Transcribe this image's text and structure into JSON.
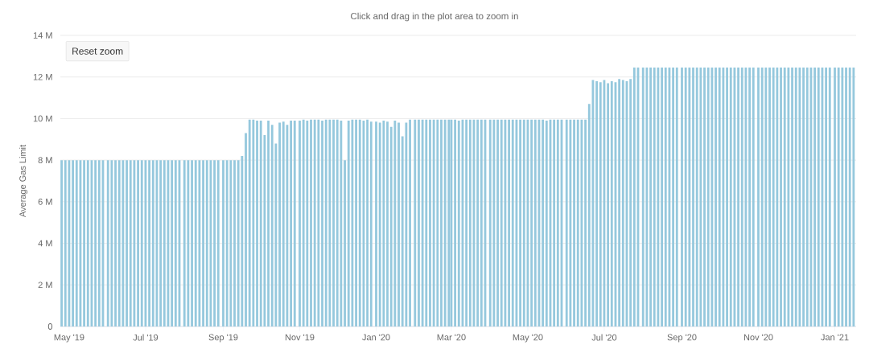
{
  "chart_data": {
    "type": "bar",
    "subtitle": "Click and drag in the plot area to zoom in",
    "ylabel": "Average Gas Limit",
    "annotations": [
      "Reset zoom"
    ],
    "color": "#95c8dd",
    "grid": "y",
    "xlim": [
      "2019-04-24",
      "2021-01-18"
    ],
    "ylim": [
      0,
      14
    ],
    "xticks": [
      {
        "value": "2019-05-01",
        "label": "May '19"
      },
      {
        "value": "2019-07-01",
        "label": "Jul '19"
      },
      {
        "value": "2019-09-01",
        "label": "Sep '19"
      },
      {
        "value": "2019-11-01",
        "label": "Nov '19"
      },
      {
        "value": "2020-01-01",
        "label": "Jan '20"
      },
      {
        "value": "2020-03-01",
        "label": "Mar '20"
      },
      {
        "value": "2020-05-01",
        "label": "May '20"
      },
      {
        "value": "2020-07-01",
        "label": "Jul '20"
      },
      {
        "value": "2020-09-01",
        "label": "Sep '20"
      },
      {
        "value": "2020-11-01",
        "label": "Nov '20"
      },
      {
        "value": "2021-01-01",
        "label": "Jan '21"
      }
    ],
    "yticks": [
      0,
      {
        "value": 2,
        "label": "2 M"
      },
      {
        "value": 4,
        "label": "4 M"
      },
      {
        "value": 6,
        "label": "6 M"
      },
      {
        "value": 8,
        "label": "8 M"
      },
      {
        "value": 10,
        "label": "10 M"
      },
      {
        "value": 12,
        "label": "12 M"
      },
      {
        "value": 14,
        "label": "14 M"
      }
    ],
    "x": [
      "2019-04-25",
      "2019-04-28",
      "2019-05-01",
      "2019-05-04",
      "2019-05-07",
      "2019-05-10",
      "2019-05-13",
      "2019-05-16",
      "2019-05-19",
      "2019-05-22",
      "2019-05-25",
      "2019-05-28",
      "2019-06-01",
      "2019-06-04",
      "2019-06-07",
      "2019-06-10",
      "2019-06-13",
      "2019-06-16",
      "2019-06-19",
      "2019-06-22",
      "2019-06-25",
      "2019-06-28",
      "2019-07-01",
      "2019-07-04",
      "2019-07-07",
      "2019-07-10",
      "2019-07-13",
      "2019-07-16",
      "2019-07-19",
      "2019-07-22",
      "2019-07-25",
      "2019-07-28",
      "2019-08-01",
      "2019-08-04",
      "2019-08-07",
      "2019-08-10",
      "2019-08-13",
      "2019-08-16",
      "2019-08-19",
      "2019-08-22",
      "2019-08-25",
      "2019-08-28",
      "2019-09-01",
      "2019-09-04",
      "2019-09-07",
      "2019-09-10",
      "2019-09-13",
      "2019-09-16",
      "2019-09-19",
      "2019-09-22",
      "2019-09-25",
      "2019-09-28",
      "2019-10-01",
      "2019-10-04",
      "2019-10-07",
      "2019-10-10",
      "2019-10-13",
      "2019-10-16",
      "2019-10-19",
      "2019-10-22",
      "2019-10-25",
      "2019-10-28",
      "2019-11-01",
      "2019-11-04",
      "2019-11-07",
      "2019-11-10",
      "2019-11-13",
      "2019-11-16",
      "2019-11-19",
      "2019-11-22",
      "2019-11-25",
      "2019-11-28",
      "2019-12-01",
      "2019-12-04",
      "2019-12-07",
      "2019-12-10",
      "2019-12-13",
      "2019-12-16",
      "2019-12-19",
      "2019-12-22",
      "2019-12-25",
      "2019-12-28",
      "2020-01-01",
      "2020-01-04",
      "2020-01-07",
      "2020-01-10",
      "2020-01-13",
      "2020-01-16",
      "2020-01-19",
      "2020-01-22",
      "2020-01-25",
      "2020-01-28",
      "2020-02-01",
      "2020-02-04",
      "2020-02-07",
      "2020-02-10",
      "2020-02-13",
      "2020-02-16",
      "2020-02-19",
      "2020-02-22",
      "2020-02-25",
      "2020-02-28",
      "2020-03-01",
      "2020-03-04",
      "2020-03-07",
      "2020-03-10",
      "2020-03-13",
      "2020-03-16",
      "2020-03-19",
      "2020-03-22",
      "2020-03-25",
      "2020-03-28",
      "2020-04-01",
      "2020-04-04",
      "2020-04-07",
      "2020-04-10",
      "2020-04-13",
      "2020-04-16",
      "2020-04-19",
      "2020-04-22",
      "2020-04-25",
      "2020-04-28",
      "2020-05-01",
      "2020-05-04",
      "2020-05-07",
      "2020-05-10",
      "2020-05-13",
      "2020-05-16",
      "2020-05-19",
      "2020-05-22",
      "2020-05-25",
      "2020-05-28",
      "2020-06-01",
      "2020-06-04",
      "2020-06-07",
      "2020-06-10",
      "2020-06-13",
      "2020-06-16",
      "2020-06-19",
      "2020-06-22",
      "2020-06-25",
      "2020-06-28",
      "2020-07-01",
      "2020-07-04",
      "2020-07-07",
      "2020-07-10",
      "2020-07-13",
      "2020-07-16",
      "2020-07-19",
      "2020-07-22",
      "2020-07-25",
      "2020-07-28",
      "2020-08-01",
      "2020-08-04",
      "2020-08-07",
      "2020-08-10",
      "2020-08-13",
      "2020-08-16",
      "2020-08-19",
      "2020-08-22",
      "2020-08-25",
      "2020-08-28",
      "2020-09-01",
      "2020-09-04",
      "2020-09-07",
      "2020-09-10",
      "2020-09-13",
      "2020-09-16",
      "2020-09-19",
      "2020-09-22",
      "2020-09-25",
      "2020-09-28",
      "2020-10-01",
      "2020-10-04",
      "2020-10-07",
      "2020-10-10",
      "2020-10-13",
      "2020-10-16",
      "2020-10-19",
      "2020-10-22",
      "2020-10-25",
      "2020-10-28",
      "2020-11-01",
      "2020-11-04",
      "2020-11-07",
      "2020-11-10",
      "2020-11-13",
      "2020-11-16",
      "2020-11-19",
      "2020-11-22",
      "2020-11-25",
      "2020-11-28",
      "2020-12-01",
      "2020-12-04",
      "2020-12-07",
      "2020-12-10",
      "2020-12-13",
      "2020-12-16",
      "2020-12-19",
      "2020-12-22",
      "2020-12-25",
      "2020-12-28",
      "2021-01-01",
      "2021-01-04",
      "2021-01-07",
      "2021-01-10",
      "2021-01-13",
      "2021-01-16"
    ],
    "values": [
      8,
      8,
      8,
      8,
      8,
      8,
      8,
      8,
      8,
      8,
      8,
      8,
      8,
      8,
      8,
      8,
      8,
      8,
      8,
      8,
      8,
      8,
      8,
      8,
      8,
      8,
      8,
      8,
      8,
      8,
      8,
      8,
      8,
      8,
      8,
      8,
      8,
      8,
      8,
      8,
      8,
      8,
      8,
      8,
      8,
      8,
      8,
      8.2,
      9.3,
      9.95,
      9.95,
      9.9,
      9.9,
      9.2,
      9.9,
      9.7,
      8.8,
      9.8,
      9.85,
      9.7,
      9.9,
      9.9,
      9.9,
      9.95,
      9.9,
      9.95,
      9.95,
      9.95,
      9.9,
      9.95,
      9.95,
      9.95,
      9.95,
      9.9,
      8,
      9.9,
      9.95,
      9.95,
      9.95,
      9.9,
      9.95,
      9.85,
      9.85,
      9.8,
      9.9,
      9.85,
      9.6,
      9.9,
      9.8,
      9.15,
      9.8,
      9.95,
      9.95,
      9.95,
      9.95,
      9.95,
      9.95,
      9.95,
      9.95,
      9.95,
      9.95,
      9.95,
      9.95,
      9.95,
      9.9,
      9.95,
      9.95,
      9.95,
      9.95,
      9.95,
      9.95,
      9.95,
      9.95,
      9.95,
      9.95,
      9.95,
      9.95,
      9.95,
      9.95,
      9.95,
      9.95,
      9.95,
      9.95,
      9.95,
      9.95,
      9.95,
      9.95,
      9.9,
      9.95,
      9.95,
      9.95,
      9.95,
      9.95,
      9.95,
      9.95,
      9.95,
      9.95,
      9.95,
      10.7,
      11.85,
      11.8,
      11.75,
      11.85,
      11.7,
      11.8,
      11.75,
      11.9,
      11.85,
      11.8,
      11.9,
      12.45,
      12.45,
      12.45,
      12.45,
      12.45,
      12.45,
      12.45,
      12.45,
      12.45,
      12.45,
      12.45,
      12.45,
      12.45,
      12.45,
      12.45,
      12.45,
      12.45,
      12.45,
      12.45,
      12.45,
      12.45,
      12.45,
      12.45,
      12.45,
      12.45,
      12.45,
      12.45,
      12.45,
      12.45,
      12.45,
      12.45,
      12.45,
      12.45,
      12.45,
      12.45,
      12.45,
      12.45,
      12.45,
      12.45,
      12.45,
      12.45,
      12.45,
      12.45,
      12.45,
      12.45,
      12.45,
      12.45,
      12.45,
      12.45,
      12.45,
      12.45,
      12.45,
      12.45,
      12.45,
      12.45,
      12.45,
      12.45,
      12.45
    ]
  }
}
